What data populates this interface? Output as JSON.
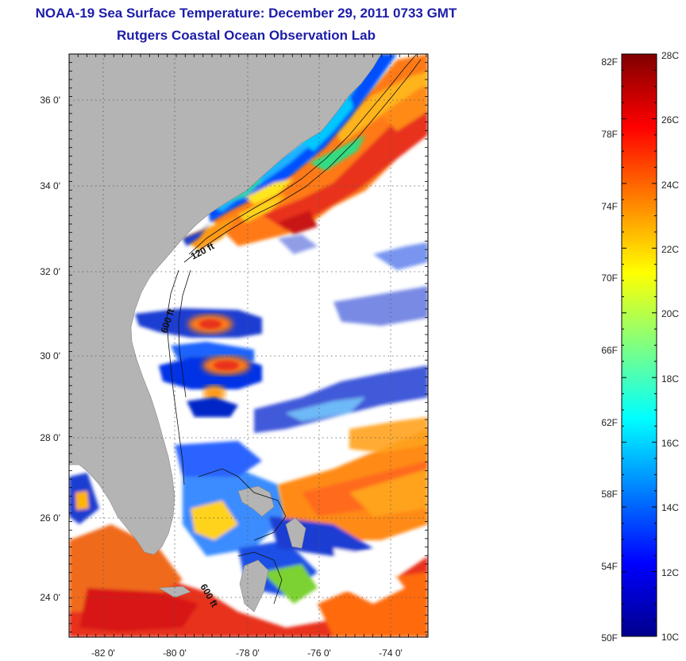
{
  "title": "NOAA-19 Sea Surface Temperature:  December 29, 2011 0733 GMT",
  "subtitle": "Rutgers Coastal Ocean Observation Lab",
  "map": {
    "lat_ticks": [
      "36 0'",
      "34 0'",
      "32 0'",
      "30 0'",
      "28 0'",
      "26 0'",
      "24 0'"
    ],
    "lon_ticks": [
      "-82 0'",
      "-80 0'",
      "-78 0'",
      "-76 0'",
      "-74 0'"
    ],
    "contour_labels": [
      "120 ft",
      "600 ft",
      "600 ft"
    ],
    "land_color": "#b4b4b4",
    "cloud_color": "#ffffff"
  },
  "colorbar": {
    "f_labels": [
      "82F",
      "78F",
      "74F",
      "70F",
      "66F",
      "62F",
      "58F",
      "54F",
      "50F"
    ],
    "c_labels": [
      "28C",
      "26C",
      "24C",
      "22C",
      "20C",
      "18C",
      "16C",
      "14C",
      "12C",
      "10C"
    ],
    "min_c": 10,
    "max_c": 28,
    "colormap": [
      "#00008c",
      "#0000ff",
      "#0080ff",
      "#00ffff",
      "#80ff80",
      "#ffff00",
      "#ff8000",
      "#ff0000",
      "#800000"
    ]
  }
}
